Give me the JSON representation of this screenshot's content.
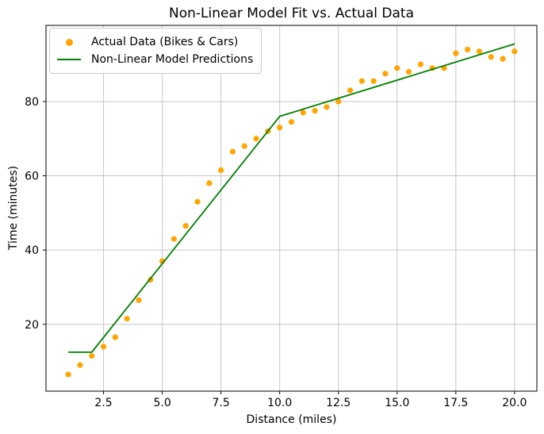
{
  "figure": {
    "background": "#ffffff"
  },
  "chart_data": {
    "type": "scatter",
    "title": "Non-Linear Model Fit vs. Actual Data",
    "xlabel": "Distance (miles)",
    "ylabel": "Time (minutes)",
    "xlim": [
      0.05,
      20.95
    ],
    "ylim": [
      2,
      100.5
    ],
    "grid": true,
    "grid_color": "#c6c6c6",
    "spine_color": "#000000",
    "x_ticks": [
      2.5,
      5.0,
      7.5,
      10.0,
      12.5,
      15.0,
      17.5,
      20.0
    ],
    "x_tick_labels": [
      "2.5",
      "5.0",
      "7.5",
      "10.0",
      "12.5",
      "15.0",
      "17.5",
      "20.0"
    ],
    "y_ticks": [
      20,
      40,
      60,
      80
    ],
    "y_tick_labels": [
      "20",
      "40",
      "60",
      "80"
    ],
    "series": [
      {
        "name": "Actual Data (Bikes & Cars)",
        "type": "scatter",
        "color": "#ffa500",
        "marker": "circle",
        "x": [
          1.0,
          1.5,
          2.0,
          2.5,
          3.0,
          3.5,
          4.0,
          4.5,
          5.0,
          5.5,
          6.0,
          6.5,
          7.0,
          7.5,
          8.0,
          8.5,
          9.0,
          9.5,
          10.0,
          10.5,
          11.0,
          11.5,
          12.0,
          12.5,
          13.0,
          13.5,
          14.0,
          14.5,
          15.0,
          15.5,
          16.0,
          16.5,
          17.0,
          17.5,
          18.0,
          18.5,
          19.0,
          19.5,
          20.0
        ],
        "y": [
          6.5,
          9,
          11.5,
          14,
          16.5,
          21.5,
          26.5,
          32,
          37,
          43,
          46.5,
          53,
          58,
          61.5,
          66.5,
          68,
          70,
          72,
          73,
          74.5,
          77,
          77.5,
          78.5,
          80,
          83,
          85.5,
          85.5,
          87.5,
          89,
          88,
          90,
          89,
          89,
          93,
          94,
          93.5,
          92,
          91.5,
          93.5
        ]
      },
      {
        "name": "Non-Linear Model Predictions",
        "type": "line",
        "color": "#008000",
        "x": [
          1.0,
          2.0,
          10.0,
          20.0
        ],
        "y": [
          12.5,
          12.5,
          76.0,
          95.5
        ]
      }
    ],
    "legend": {
      "position": "upper left",
      "items": [
        {
          "label": "Actual Data (Bikes & Cars)",
          "marker": "dot",
          "color": "#ffa500"
        },
        {
          "label": "Non-Linear Model Predictions",
          "marker": "line",
          "color": "#008000"
        }
      ]
    }
  }
}
